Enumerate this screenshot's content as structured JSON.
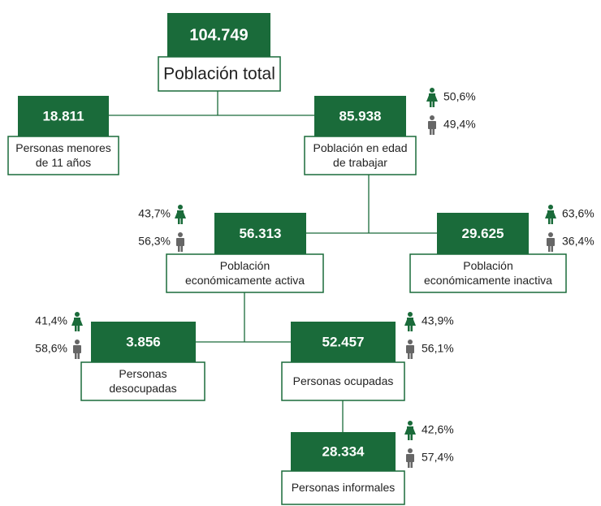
{
  "nodes": [
    {
      "value": "104.749",
      "label": [
        "Población total"
      ]
    },
    {
      "value": "18.811",
      "label": [
        "Personas menores",
        "de 11 años"
      ]
    },
    {
      "value": "85.938",
      "label": [
        "Población en edad",
        "de trabajar"
      ],
      "female": "50,6%",
      "male": "49,4%"
    },
    {
      "value": "56.313",
      "label": [
        "Población",
        "económicamente activa"
      ],
      "female": "43,7%",
      "male": "56,3%"
    },
    {
      "value": "29.625",
      "label": [
        "Población",
        "económicamente inactiva"
      ],
      "female": "63,6%",
      "male": "36,4%"
    },
    {
      "value": "3.856",
      "label": [
        "Personas",
        "desocupadas"
      ],
      "female": "41,4%",
      "male": "58,6%"
    },
    {
      "value": "52.457",
      "label": [
        "Personas ocupadas"
      ],
      "female": "43,9%",
      "male": "56,1%"
    },
    {
      "value": "28.334",
      "label": [
        "Personas informales"
      ],
      "female": "42,6%",
      "male": "57,4%"
    }
  ]
}
